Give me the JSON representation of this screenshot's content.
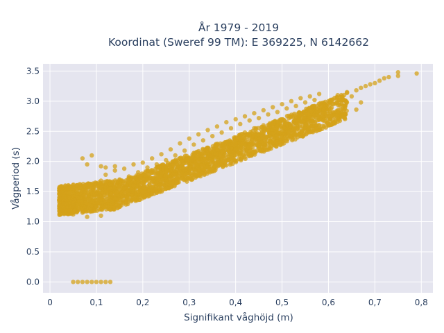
{
  "colors": {
    "background": "#ffffff",
    "plot_background": "#e5e5ef",
    "gridline": "#ffffff",
    "marker": "#d4a21a",
    "text": "#2a3f5f"
  },
  "chart_data": {
    "type": "scatter",
    "title": "År 1979 - 2019",
    "subtitle": "Koordinat (Sweref 99 TM): E 369225, N 6142662",
    "xlabel": "Signifikant våghöjd (m)",
    "ylabel": "Vågperiod (s)",
    "xlim": [
      -0.015,
      0.825
    ],
    "ylim": [
      -0.18,
      3.62
    ],
    "xticks": [
      0,
      0.1,
      0.2,
      0.3,
      0.4,
      0.5,
      0.6,
      0.7,
      0.8
    ],
    "xtick_labels": [
      "0",
      "0,1",
      "0,2",
      "0,3",
      "0,4",
      "0,5",
      "0,6",
      "0,7",
      "0,8"
    ],
    "yticks": [
      0,
      0.5,
      1,
      1.5,
      2,
      2.5,
      3,
      3.5
    ],
    "ytick_labels": [
      "0.0",
      "0.5",
      "1.0",
      "1.5",
      "2.0",
      "2.5",
      "3.0",
      "3.5"
    ],
    "grid": true,
    "legend": "none",
    "series": [
      {
        "color": "#d4a21a",
        "points": [
          [
            0.02,
            1.22
          ],
          [
            0.02,
            1.36
          ],
          [
            0.03,
            1.3
          ],
          [
            0.03,
            1.42
          ],
          [
            0.04,
            1.18
          ],
          [
            0.04,
            1.55
          ],
          [
            0.05,
            1.28
          ],
          [
            0.05,
            1.12
          ],
          [
            0.06,
            1.4
          ],
          [
            0.06,
            1.6
          ],
          [
            0.07,
            1.15
          ],
          [
            0.07,
            1.5
          ],
          [
            0.08,
            1.62
          ],
          [
            0.08,
            1.08
          ],
          [
            0.09,
            1.33
          ],
          [
            0.09,
            1.58
          ],
          [
            0.1,
            1.25
          ],
          [
            0.1,
            1.45
          ],
          [
            0.11,
            1.68
          ],
          [
            0.11,
            1.1
          ],
          [
            0.12,
            1.52
          ],
          [
            0.12,
            1.78
          ],
          [
            0.13,
            1.2
          ],
          [
            0.13,
            1.62
          ],
          [
            0.14,
            1.85
          ],
          [
            0.14,
            1.38
          ],
          [
            0.15,
            1.7
          ],
          [
            0.15,
            1.25
          ],
          [
            0.16,
            1.55
          ],
          [
            0.16,
            1.88
          ],
          [
            0.17,
            1.45
          ],
          [
            0.17,
            1.75
          ],
          [
            0.18,
            1.6
          ],
          [
            0.18,
            1.95
          ],
          [
            0.19,
            1.5
          ],
          [
            0.19,
            1.82
          ],
          [
            0.2,
            1.65
          ],
          [
            0.2,
            1.98
          ],
          [
            0.21,
            1.58
          ],
          [
            0.21,
            1.9
          ],
          [
            0.22,
            1.72
          ],
          [
            0.22,
            2.05
          ],
          [
            0.23,
            1.65
          ],
          [
            0.23,
            1.95
          ],
          [
            0.24,
            1.8
          ],
          [
            0.24,
            2.12
          ],
          [
            0.25,
            1.7
          ],
          [
            0.25,
            2.02
          ],
          [
            0.26,
            1.88
          ],
          [
            0.26,
            2.2
          ],
          [
            0.27,
            1.78
          ],
          [
            0.27,
            2.1
          ],
          [
            0.28,
            1.95
          ],
          [
            0.28,
            2.3
          ],
          [
            0.29,
            1.85
          ],
          [
            0.29,
            2.18
          ],
          [
            0.3,
            2.02
          ],
          [
            0.3,
            2.38
          ],
          [
            0.31,
            1.92
          ],
          [
            0.31,
            2.28
          ],
          [
            0.32,
            2.1
          ],
          [
            0.32,
            2.45
          ],
          [
            0.33,
            2.0
          ],
          [
            0.33,
            2.35
          ],
          [
            0.34,
            2.18
          ],
          [
            0.34,
            2.52
          ],
          [
            0.35,
            2.08
          ],
          [
            0.35,
            2.42
          ],
          [
            0.36,
            2.25
          ],
          [
            0.36,
            2.58
          ],
          [
            0.37,
            2.15
          ],
          [
            0.37,
            2.48
          ],
          [
            0.38,
            2.32
          ],
          [
            0.38,
            2.65
          ],
          [
            0.39,
            2.22
          ],
          [
            0.39,
            2.55
          ],
          [
            0.4,
            2.4
          ],
          [
            0.4,
            2.7
          ],
          [
            0.41,
            2.3
          ],
          [
            0.41,
            2.62
          ],
          [
            0.42,
            2.48
          ],
          [
            0.42,
            2.75
          ],
          [
            0.43,
            2.38
          ],
          [
            0.43,
            2.68
          ],
          [
            0.44,
            2.55
          ],
          [
            0.44,
            2.8
          ],
          [
            0.45,
            2.45
          ],
          [
            0.45,
            2.72
          ],
          [
            0.46,
            2.6
          ],
          [
            0.46,
            2.85
          ],
          [
            0.47,
            2.52
          ],
          [
            0.47,
            2.78
          ],
          [
            0.48,
            2.65
          ],
          [
            0.48,
            2.9
          ],
          [
            0.49,
            2.58
          ],
          [
            0.49,
            2.82
          ],
          [
            0.5,
            2.7
          ],
          [
            0.5,
            2.95
          ],
          [
            0.51,
            2.62
          ],
          [
            0.51,
            2.88
          ],
          [
            0.52,
            2.75
          ],
          [
            0.52,
            3.0
          ],
          [
            0.53,
            2.68
          ],
          [
            0.53,
            2.92
          ],
          [
            0.54,
            2.8
          ],
          [
            0.54,
            3.05
          ],
          [
            0.55,
            2.72
          ],
          [
            0.55,
            2.98
          ],
          [
            0.56,
            2.85
          ],
          [
            0.56,
            3.08
          ],
          [
            0.57,
            2.78
          ],
          [
            0.57,
            3.02
          ],
          [
            0.58,
            2.9
          ],
          [
            0.58,
            3.12
          ],
          [
            0.59,
            2.85
          ],
          [
            0.6,
            3.0
          ],
          [
            0.61,
            2.95
          ],
          [
            0.62,
            3.1
          ],
          [
            0.63,
            3.02
          ],
          [
            0.64,
            3.15
          ],
          [
            0.65,
            3.08
          ],
          [
            0.66,
            2.86
          ],
          [
            0.66,
            3.18
          ],
          [
            0.67,
            2.98
          ],
          [
            0.67,
            3.22
          ],
          [
            0.68,
            3.25
          ],
          [
            0.69,
            3.28
          ],
          [
            0.7,
            3.3
          ],
          [
            0.71,
            3.34
          ],
          [
            0.72,
            3.38
          ],
          [
            0.73,
            3.4
          ],
          [
            0.75,
            3.42
          ],
          [
            0.75,
            3.48
          ],
          [
            0.79,
            3.46
          ],
          [
            0.07,
            2.05
          ],
          [
            0.08,
            1.95
          ],
          [
            0.09,
            2.1
          ],
          [
            0.11,
            1.92
          ],
          [
            0.12,
            1.9
          ],
          [
            0.14,
            1.92
          ],
          [
            0.34,
            2.0
          ],
          [
            0.37,
            1.96
          ],
          [
            0.4,
            2.2
          ],
          [
            0.42,
            2.25
          ],
          [
            0.46,
            2.3
          ],
          [
            0.5,
            2.4
          ],
          [
            0.55,
            2.55
          ],
          [
            0.56,
            2.66
          ],
          [
            0.58,
            2.7
          ],
          [
            0.05,
            0.0
          ],
          [
            0.06,
            0.0
          ],
          [
            0.07,
            0.0
          ],
          [
            0.08,
            0.0
          ],
          [
            0.09,
            0.0
          ],
          [
            0.1,
            0.0
          ],
          [
            0.11,
            0.0
          ],
          [
            0.12,
            0.0
          ],
          [
            0.13,
            0.0
          ]
        ]
      }
    ]
  }
}
